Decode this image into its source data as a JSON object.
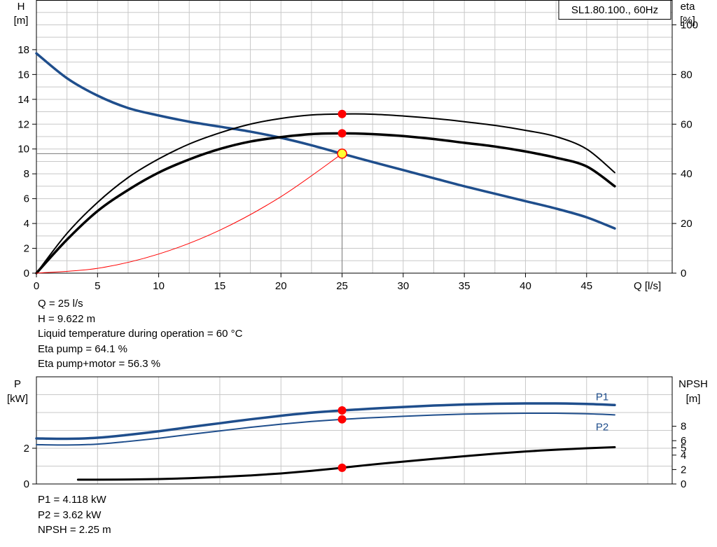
{
  "chart_data": [
    {
      "type": "line",
      "name": "head-efficiency",
      "title": "SL1.80.100., 60Hz",
      "xlabel": "Q [l/s]",
      "ylabel_left": [
        "H",
        "[m]"
      ],
      "ylabel_right": [
        "eta",
        "[%]"
      ],
      "xlim": [
        0,
        52
      ],
      "ylim": [
        0,
        22
      ],
      "y2lim": [
        0,
        110
      ],
      "xticks": [
        0,
        5,
        10,
        15,
        20,
        25,
        30,
        35,
        40,
        45
      ],
      "yticks": [
        0,
        2,
        4,
        6,
        8,
        10,
        12,
        14,
        16,
        18
      ],
      "y2ticks": [
        0,
        20,
        40,
        60,
        80,
        100
      ],
      "grid": true,
      "series": [
        {
          "role": "H",
          "color": "#1f4e8c",
          "x": [
            0,
            2.5,
            5,
            7.5,
            10,
            12.5,
            15,
            17.5,
            20,
            22.5,
            25,
            27.5,
            30,
            32.5,
            35,
            37.5,
            40,
            42.5,
            45,
            47.3
          ],
          "y": [
            17.7,
            15.7,
            14.3,
            13.3,
            12.7,
            12.2,
            11.8,
            11.4,
            10.9,
            10.3,
            9.62,
            8.95,
            8.3,
            7.65,
            7.0,
            6.4,
            5.8,
            5.2,
            4.5,
            3.6
          ]
        },
        {
          "role": "eta-pump",
          "color": "#000000",
          "x": [
            0,
            2.5,
            5,
            7.5,
            10,
            12.5,
            15,
            17.5,
            20,
            22.5,
            25,
            27.5,
            30,
            32.5,
            35,
            37.5,
            40,
            42.5,
            45,
            47.3
          ],
          "y": [
            0,
            16,
            28.5,
            38.5,
            46,
            52,
            56.5,
            60,
            62.3,
            63.7,
            64.1,
            64,
            63.3,
            62.3,
            61,
            59.5,
            57.5,
            55,
            50,
            40.5
          ]
        },
        {
          "role": "eta-pump-motor",
          "color": "#000000",
          "x": [
            0,
            2.5,
            5,
            7.5,
            10,
            12.5,
            15,
            17.5,
            20,
            22.5,
            25,
            27.5,
            30,
            32.5,
            35,
            37.5,
            40,
            42.5,
            45,
            47.3
          ],
          "y": [
            0,
            13.5,
            25,
            33.5,
            40.5,
            45.8,
            50,
            53,
            54.8,
            56,
            56.3,
            56,
            55.2,
            54,
            52.5,
            51,
            49,
            46.5,
            43,
            35
          ]
        },
        {
          "role": "system-curve",
          "color": "#ff0000",
          "x": [
            0,
            5,
            10,
            15,
            20,
            25
          ],
          "y": [
            0,
            0.385,
            1.54,
            3.46,
            6.16,
            9.62
          ]
        }
      ],
      "operating_point": {
        "q": 25,
        "h": 9.622,
        "eta_pump": 64.1,
        "eta_pump_motor": 56.3
      }
    },
    {
      "type": "line",
      "name": "power-npsh",
      "ylabel_left": [
        "P",
        "[kW]"
      ],
      "ylabel_right": [
        "NPSH",
        "[m]"
      ],
      "xlim": [
        0,
        52
      ],
      "ylim": [
        0,
        6
      ],
      "y2ticks": [
        0,
        2,
        4,
        5,
        6,
        8
      ],
      "yticks": [
        0,
        2
      ],
      "grid": true,
      "series": [
        {
          "name": "P1",
          "color": "#1f4e8c",
          "x": [
            0,
            2.5,
            5,
            7.5,
            10,
            12.5,
            15,
            17.5,
            20,
            22.5,
            25,
            27.5,
            30,
            32.5,
            35,
            37.5,
            40,
            42.5,
            45,
            47.3
          ],
          "y": [
            2.55,
            2.53,
            2.59,
            2.75,
            2.95,
            3.18,
            3.4,
            3.62,
            3.82,
            3.99,
            4.118,
            4.22,
            4.31,
            4.39,
            4.45,
            4.49,
            4.51,
            4.51,
            4.48,
            4.42
          ]
        },
        {
          "name": "P2",
          "color": "#1f4e8c",
          "x": [
            0,
            2.5,
            5,
            7.5,
            10,
            12.5,
            15,
            17.5,
            20,
            22.5,
            25,
            27.5,
            30,
            32.5,
            35,
            37.5,
            40,
            42.5,
            45,
            47.3
          ],
          "y": [
            2.2,
            2.18,
            2.23,
            2.38,
            2.56,
            2.77,
            2.97,
            3.17,
            3.35,
            3.5,
            3.62,
            3.71,
            3.79,
            3.86,
            3.91,
            3.94,
            3.96,
            3.96,
            3.93,
            3.87
          ]
        },
        {
          "role": "NPSH",
          "color": "#000000",
          "x": [
            3.4,
            5,
            7.5,
            10,
            12.5,
            15,
            17.5,
            20,
            22.5,
            25,
            27.5,
            30,
            32.5,
            35,
            37.5,
            40,
            42.5,
            45,
            47.3
          ],
          "y": [
            0.6,
            0.6,
            0.62,
            0.68,
            0.8,
            0.97,
            1.18,
            1.46,
            1.82,
            2.25,
            2.7,
            3.1,
            3.48,
            3.85,
            4.2,
            4.5,
            4.75,
            4.95,
            5.1
          ]
        }
      ],
      "operating_point": {
        "q": 25,
        "p1": 4.118,
        "p2": 3.62,
        "npsh": 2.25
      }
    }
  ],
  "info_top": [
    "Q = 25 l/s",
    "H = 9.622 m",
    "Liquid temperature during operation = 60 °C",
    "Eta pump = 64.1 %",
    "Eta pump+motor = 56.3 %"
  ],
  "info_bottom": [
    "P1 = 4.118 kW",
    "P2 = 3.62 kW",
    "NPSH = 2.25 m"
  ],
  "colors": {
    "pump_curve": "#1f4e8c",
    "efficiency": "#000000",
    "system": "#ff0000",
    "marker": "#ff0000",
    "duty_fill": "#ffff33",
    "grid": "#c8c8c8"
  }
}
